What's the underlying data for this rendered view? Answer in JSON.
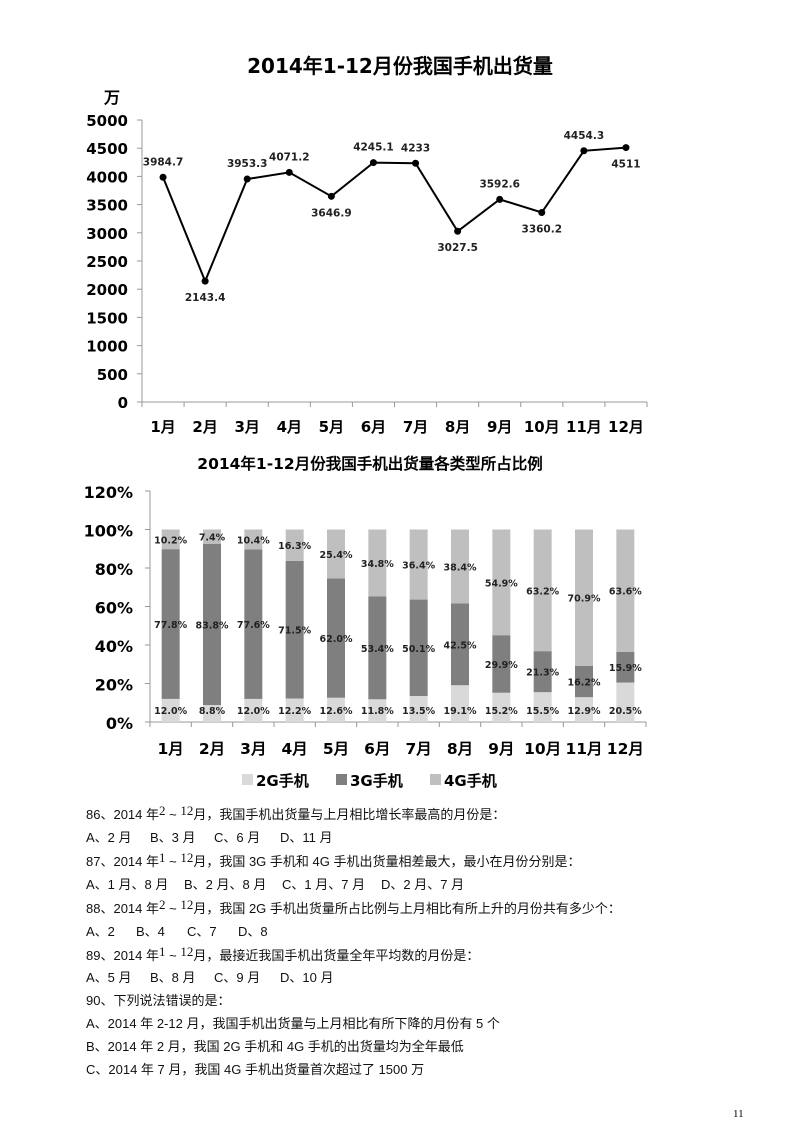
{
  "chart_data": [
    {
      "type": "line",
      "title": "2014年1-12月份我国手机出货量",
      "ylabel": "万",
      "xlabel": "",
      "categories": [
        "1月",
        "2月",
        "3月",
        "4月",
        "5月",
        "6月",
        "7月",
        "8月",
        "9月",
        "10月",
        "11月",
        "12月"
      ],
      "values": [
        3984.7,
        2143.4,
        3953.3,
        4071.2,
        3646.9,
        4245.1,
        4233,
        3027.5,
        3592.6,
        3360.2,
        4454.3,
        4511
      ],
      "labels": [
        "3984.7",
        "2143.4",
        "3953.3",
        "4071.2",
        "3646.9",
        "4245.1",
        "4233",
        "3027.5",
        "3592.6",
        "3360.2",
        "4454.3",
        "4511"
      ],
      "yticks": [
        "0",
        "500",
        "1000",
        "1500",
        "2000",
        "2500",
        "3000",
        "3500",
        "4000",
        "4500",
        "5000"
      ],
      "ylim": [
        0,
        5000
      ],
      "grid": false,
      "legend": "none"
    },
    {
      "type": "bar",
      "stacked": true,
      "title": "2014年1-12月份我国手机出货量各类型所占比例",
      "xlabel": "",
      "ylabel": "",
      "categories": [
        "1月",
        "2月",
        "3月",
        "4月",
        "5月",
        "6月",
        "7月",
        "8月",
        "9月",
        "10月",
        "11月",
        "12月"
      ],
      "series": [
        {
          "name": "2G手机",
          "color": "#d9d9d9",
          "values": [
            12.0,
            8.8,
            12.0,
            12.2,
            12.6,
            11.8,
            13.5,
            19.1,
            15.2,
            15.5,
            12.9,
            20.5
          ],
          "labels": [
            "12.0%",
            "8.8%",
            "12.0%",
            "12.2%",
            "12.6%",
            "11.8%",
            "13.5%",
            "19.1%",
            "15.2%",
            "15.5%",
            "12.9%",
            "20.5%"
          ]
        },
        {
          "name": "3G手机",
          "color": "#7f7f7f",
          "values": [
            77.8,
            83.8,
            77.6,
            71.5,
            62.0,
            53.4,
            50.1,
            42.5,
            29.9,
            21.3,
            16.2,
            15.9
          ],
          "labels": [
            "77.8%",
            "83.8%",
            "77.6%",
            "71.5%",
            "62.0%",
            "53.4%",
            "50.1%",
            "42.5%",
            "29.9%",
            "21.3%",
            "16.2%",
            "15.9%"
          ]
        },
        {
          "name": "4G手机",
          "color": "#bfbfbf",
          "values": [
            10.2,
            7.4,
            10.4,
            16.3,
            25.4,
            34.8,
            36.4,
            38.4,
            54.9,
            63.2,
            70.9,
            63.6
          ],
          "labels": [
            "10.2%",
            "7.4%",
            "10.4%",
            "16.3%",
            "25.4%",
            "34.8%",
            "36.4%",
            "38.4%",
            "54.9%",
            "63.2%",
            "70.9%",
            "63.6%"
          ]
        }
      ],
      "yticks": [
        "0%",
        "20%",
        "40%",
        "60%",
        "80%",
        "100%",
        "120%"
      ],
      "ylim": [
        0,
        120
      ],
      "grid": false,
      "legend": "bottom"
    }
  ],
  "page": {
    "chart1_title": "2014年1-12月份我国手机出货量",
    "chart2_title": "2014年1-12月份我国手机出货量各类型所占比例",
    "page_number": "11"
  },
  "questions": [
    {
      "num": "86、2014 年",
      "range_a": "2",
      "tilde": " ~ ",
      "range_b": "12",
      "text": "月，我国手机出货量与上月相比增长率最高的月份是：",
      "options": [
        "A、2 月",
        "B、3 月",
        "C、6 月",
        "D、11 月"
      ]
    },
    {
      "num": "87、2014 年",
      "range_a": "1",
      "tilde": " ~ ",
      "range_b": "12",
      "text": "月，我国 3G 手机和 4G 手机出货量相差最大，最小在月份分别是：",
      "options": [
        "A、1 月、8 月",
        "B、2 月、8 月",
        "C、1 月、7 月",
        "D、2 月、7 月"
      ]
    },
    {
      "num": "88、2014 年",
      "range_a": "2",
      "tilde": " ~ ",
      "range_b": "12",
      "text": "月，我国 2G 手机出货量所占比例与上月相比有所上升的月份共有多少个：",
      "options": [
        "A、2",
        "B、4",
        "C、7",
        "D、8"
      ]
    },
    {
      "num": "89、2014 年",
      "range_a": "1",
      "tilde": " ~ ",
      "range_b": "12",
      "text": "月，最接近我国手机出货量全年平均数的月份是：",
      "options": [
        "A、5 月",
        "B、8 月",
        "C、9 月",
        "D、10 月"
      ]
    },
    {
      "stem": "90、下列说法错误的是：",
      "statements": [
        "A、2014 年 2-12 月，我国手机出货量与上月相比有所下降的月份有 5 个",
        "B、2014 年 2 月，我国 2G 手机和 4G 手机的出货量均为全年最低",
        "C、2014 年 7 月，我国 4G 手机出货量首次超过了 1500 万"
      ]
    }
  ]
}
